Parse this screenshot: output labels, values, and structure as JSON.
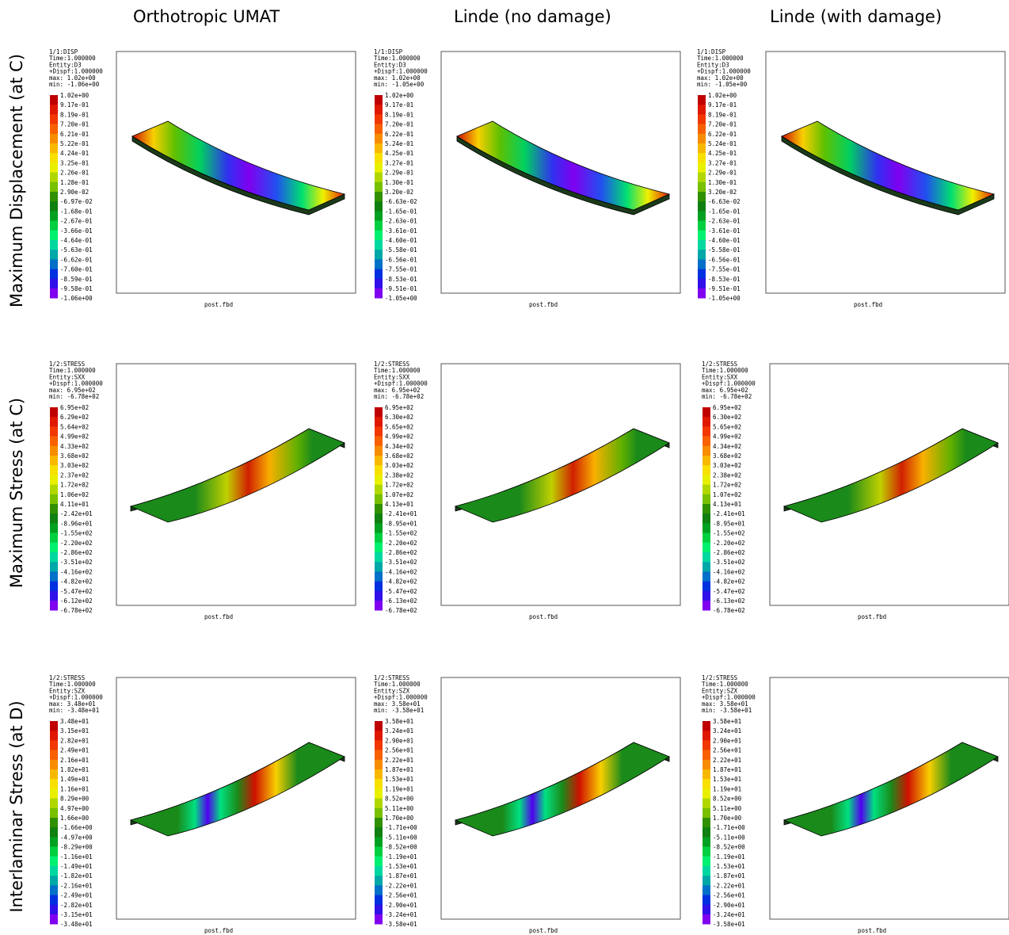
{
  "columns": [
    "Orthotropic UMAT",
    "Linde (no damage)",
    "Linde (with damage)"
  ],
  "rows": [
    "Maximum Displacement (at C)",
    "Maximum Stress (at C)",
    "Interlaminar Stress (at D)"
  ],
  "panels": [
    [
      {
        "header": [
          "1/1:DISP",
          "Time:1.000000",
          "Entity:D3",
          "+Dispf:1.000000",
          "max: 1.02e+00",
          "min: -1.06e+00"
        ],
        "legend": [
          "1.02e+00",
          "9.17e-01",
          "8.19e-01",
          "7.20e-01",
          "6.21e-01",
          "5.22e-01",
          "4.24e-01",
          "3.25e-01",
          "2.26e-01",
          "1.28e-01",
          "2.90e-02",
          "-6.97e-02",
          "-1.68e-01",
          "-2.67e-01",
          "-3.66e-01",
          "-4.64e-01",
          "-5.63e-01",
          "-6.62e-01",
          "-7.60e-01",
          "-8.59e-01",
          "-9.58e-01",
          "-1.06e+00"
        ],
        "footer": "post.fbd"
      },
      {
        "header": [
          "1/1:DISP",
          "Time:1.000000",
          "Entity:D3",
          "+Dispf:1.000000",
          "max: 1.02e+00",
          "min: -1.05e+00"
        ],
        "legend": [
          "1.02e+00",
          "9.17e-01",
          "8.19e-01",
          "7.20e-01",
          "6.22e-01",
          "5.24e-01",
          "4.25e-01",
          "3.27e-01",
          "2.29e-01",
          "1.30e-01",
          "3.20e-02",
          "-6.63e-02",
          "-1.65e-01",
          "-2.63e-01",
          "-3.61e-01",
          "-4.60e-01",
          "-5.58e-01",
          "-6.56e-01",
          "-7.55e-01",
          "-8.53e-01",
          "-9.51e-01",
          "-1.05e+00"
        ],
        "footer": "post.fbd"
      },
      {
        "header": [
          "1/1:DISP",
          "Time:1.000000",
          "Entity:D3",
          "+Dispf:1.000000",
          "max: 1.02e+00",
          "min: -1.05e+00"
        ],
        "legend": [
          "1.02e+00",
          "9.17e-01",
          "8.19e-01",
          "7.20e-01",
          "6.22e-01",
          "5.24e-01",
          "4.25e-01",
          "3.27e-01",
          "2.29e-01",
          "1.30e-01",
          "3.20e-02",
          "-6.63e-02",
          "-1.65e-01",
          "-2.63e-01",
          "-3.61e-01",
          "-4.60e-01",
          "-5.58e-01",
          "-6.56e-01",
          "-7.55e-01",
          "-8.53e-01",
          "-9.51e-01",
          "-1.05e+00"
        ],
        "footer": "post.fbd"
      }
    ],
    [
      {
        "header": [
          "1/2:STRESS",
          "Time:1.000000",
          "Entity:SXX",
          "+Dispf:1.000000",
          "max: 6.95e+02",
          "min: -6.78e+02"
        ],
        "legend": [
          "6.95e+02",
          "6.29e+02",
          "5.64e+02",
          "4.99e+02",
          "4.33e+02",
          "3.68e+02",
          "3.03e+02",
          "2.37e+02",
          "1.72e+02",
          "1.06e+02",
          "4.11e+01",
          "-2.42e+01",
          "-8.96e+01",
          "-1.55e+02",
          "-2.20e+02",
          "-2.86e+02",
          "-3.51e+02",
          "-4.16e+02",
          "-4.82e+02",
          "-5.47e+02",
          "-6.12e+02",
          "-6.78e+02"
        ],
        "footer": "post.fbd"
      },
      {
        "header": [
          "1/2:STRESS",
          "Time:1.000000",
          "Entity:SXX",
          "+Dispf:1.000000",
          "max: 6.95e+02",
          "min: -6.78e+02"
        ],
        "legend": [
          "6.95e+02",
          "6.30e+02",
          "5.65e+02",
          "4.99e+02",
          "4.34e+02",
          "3.68e+02",
          "3.03e+02",
          "2.38e+02",
          "1.72e+02",
          "1.07e+02",
          "4.13e+01",
          "-2.41e+01",
          "-8.95e+01",
          "-1.55e+02",
          "-2.20e+02",
          "-2.86e+02",
          "-3.51e+02",
          "-4.16e+02",
          "-4.82e+02",
          "-5.47e+02",
          "-6.13e+02",
          "-6.78e+02"
        ],
        "footer": "post.fbd"
      },
      {
        "header": [
          "1/2:STRESS",
          "Time:1.000000",
          "Entity:SXX",
          "+Dispf:1.000000",
          "max: 6.95e+02",
          "min: -6.78e+02"
        ],
        "legend": [
          "6.95e+02",
          "6.30e+02",
          "5.65e+02",
          "4.99e+02",
          "4.34e+02",
          "3.68e+02",
          "3.03e+02",
          "2.38e+02",
          "1.72e+02",
          "1.07e+02",
          "4.13e+01",
          "-2.41e+01",
          "-8.95e+01",
          "-1.55e+02",
          "-2.20e+02",
          "-2.86e+02",
          "-3.51e+02",
          "-4.16e+02",
          "-4.82e+02",
          "-5.47e+02",
          "-6.13e+02",
          "-6.78e+02"
        ],
        "footer": "post.fbd"
      }
    ],
    [
      {
        "header": [
          "1/2:STRESS",
          "Time:1.000000",
          "Entity:SZX",
          "+Dispf:1.000000",
          "max: 3.48e+01",
          "min: -3.48e+01"
        ],
        "legend": [
          "3.48e+01",
          "3.15e+01",
          "2.82e+01",
          "2.49e+01",
          "2.16e+01",
          "1.82e+01",
          "1.49e+01",
          "1.16e+01",
          "8.29e+00",
          "4.97e+00",
          "1.66e+00",
          "-1.66e+00",
          "-4.97e+00",
          "-8.29e+00",
          "-1.16e+01",
          "-1.49e+01",
          "-1.82e+01",
          "-2.16e+01",
          "-2.49e+01",
          "-2.82e+01",
          "-3.15e+01",
          "-3.48e+01"
        ],
        "footer": "post.fbd"
      },
      {
        "header": [
          "1/2:STRESS",
          "Time:1.000000",
          "Entity:SZX",
          "+Dispf:1.000000",
          "max: 3.58e+01",
          "min: -3.58e+01"
        ],
        "legend": [
          "3.58e+01",
          "3.24e+01",
          "2.90e+01",
          "2.56e+01",
          "2.22e+01",
          "1.87e+01",
          "1.53e+01",
          "1.19e+01",
          "8.52e+00",
          "5.11e+00",
          "1.70e+00",
          "-1.71e+00",
          "-5.11e+00",
          "-8.52e+00",
          "-1.19e+01",
          "-1.53e+01",
          "-1.87e+01",
          "-2.22e+01",
          "-2.56e+01",
          "-2.90e+01",
          "-3.24e+01",
          "-3.58e+01"
        ],
        "footer": "post.fbd"
      },
      {
        "header": [
          "1/2:STRESS",
          "Time:1.000000",
          "Entity:SZX",
          "+Dispf:1.000000",
          "max: 3.58e+01",
          "min: -3.58e+01"
        ],
        "legend": [
          "3.58e+01",
          "3.24e+01",
          "2.90e+01",
          "2.56e+01",
          "2.22e+01",
          "1.87e+01",
          "1.53e+01",
          "1.19e+01",
          "8.52e+00",
          "5.11e+00",
          "1.70e+00",
          "-1.71e+00",
          "-5.11e+00",
          "-8.52e+00",
          "-1.19e+01",
          "-1.53e+01",
          "-1.87e+01",
          "-2.22e+01",
          "-2.56e+01",
          "-2.90e+01",
          "-3.24e+01",
          "-3.58e+01"
        ],
        "footer": "post.fbd"
      }
    ]
  ]
}
